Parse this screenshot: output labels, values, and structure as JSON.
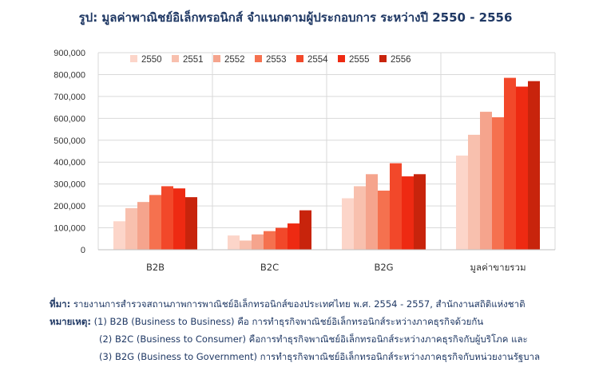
{
  "title": "รูป: มูลค่าพาณิชย์อิเล็กทรอนิกส์ จำแนกตามผู้ประกอบการ ระหว่างปี 2550 - 2556",
  "notes": {
    "source_label": "ที่มา:",
    "source_text": "รายงานการสำรวจสถานภาพการพาณิชย์อิเล็กทรอนิกส์ของประเทศไทย พ.ศ. 2554 - 2557, สำนักงานสถิติแห่งชาติ",
    "remark_label": "หมายเหตุ:",
    "remark_1": "(1) B2B (Business to Business) คือ การทำธุรกิจพาณิชย์อิเล็กทรอนิกส์ระหว่างภาคธุรกิจด้วยกัน",
    "remark_2": "(2) B2C (Business to Consumer) คือการทำธุรกิจพาณิชย์อิเล็กทรอนิกส์ระหว่างภาคธุรกิจกับผู้บริโภค และ",
    "remark_3": "(3) B2G (Business to Government) การทำธุรกิจพาณิชย์อิเล็กทรอนิกส์ระหว่างภาคธุรกิจกับหน่วยงานรัฐบาล"
  },
  "chart_data": {
    "type": "bar",
    "categories": [
      "B2B",
      "B2C",
      "B2G",
      "มูลค่าขายรวม"
    ],
    "series": [
      {
        "name": "2550",
        "color": "#fcd5c9",
        "values": [
          130000,
          65000,
          235000,
          430000
        ]
      },
      {
        "name": "2551",
        "color": "#f8c0ae",
        "values": [
          190000,
          42000,
          290000,
          525000
        ]
      },
      {
        "name": "2552",
        "color": "#f5a48d",
        "values": [
          218000,
          70000,
          345000,
          630000
        ]
      },
      {
        "name": "2553",
        "color": "#f5714f",
        "values": [
          250000,
          85000,
          270000,
          605000
        ]
      },
      {
        "name": "2554",
        "color": "#f2482a",
        "values": [
          290000,
          100000,
          395000,
          785000
        ]
      },
      {
        "name": "2555",
        "color": "#ee2a12",
        "values": [
          280000,
          120000,
          335000,
          745000
        ]
      },
      {
        "name": "2556",
        "color": "#c8240c",
        "values": [
          240000,
          180000,
          345000,
          770000
        ]
      }
    ],
    "ylim": [
      0,
      900000
    ],
    "yticks": [
      "0",
      "100,000",
      "200,000",
      "300,000",
      "400,000",
      "500,000",
      "600,000",
      "700,000",
      "800,000",
      "900,000"
    ],
    "grid": true,
    "legend_position": "top"
  }
}
